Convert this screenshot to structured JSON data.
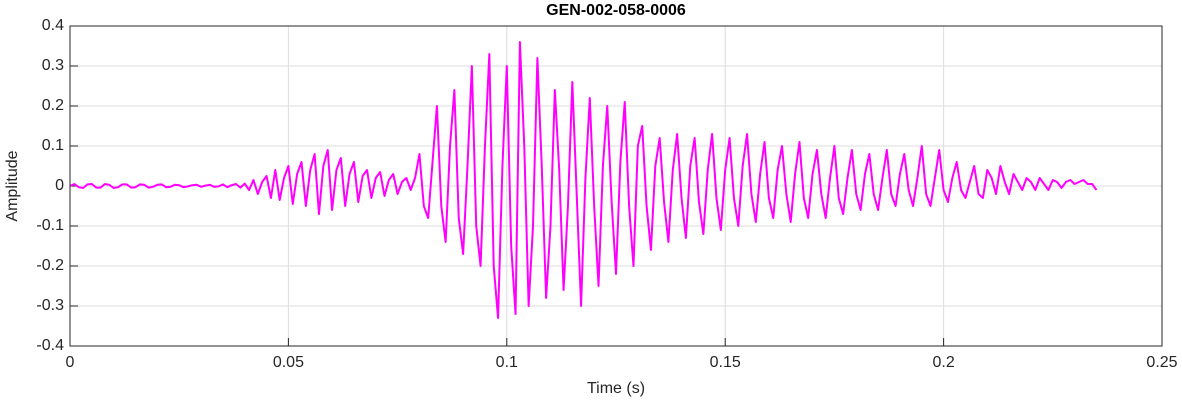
{
  "chart_data": {
    "type": "line",
    "title": "GEN-002-058-0006",
    "xlabel": "Time (s)",
    "ylabel": "Amplitude",
    "xlim": [
      0,
      0.25
    ],
    "xticks": [
      0,
      0.05,
      0.1,
      0.15,
      0.2,
      0.25
    ],
    "ylim": [
      -0.4,
      0.4
    ],
    "yticks": [
      -0.4,
      -0.3,
      -0.2,
      -0.1,
      0,
      0.1,
      0.2,
      0.3,
      0.4
    ],
    "grid": true,
    "x": [
      0,
      0.001,
      0.002,
      0.003,
      0.004,
      0.005,
      0.006,
      0.007,
      0.008,
      0.009,
      0.01,
      0.011,
      0.012,
      0.013,
      0.014,
      0.015,
      0.016,
      0.017,
      0.018,
      0.019,
      0.02,
      0.021,
      0.022,
      0.023,
      0.024,
      0.025,
      0.026,
      0.027,
      0.028,
      0.029,
      0.03,
      0.031,
      0.032,
      0.033,
      0.034,
      0.035,
      0.036,
      0.037,
      0.038,
      0.039,
      0.04,
      0.041,
      0.042,
      0.043,
      0.044,
      0.045,
      0.046,
      0.047,
      0.048,
      0.049,
      0.05,
      0.051,
      0.052,
      0.053,
      0.054,
      0.055,
      0.056,
      0.057,
      0.058,
      0.059,
      0.06,
      0.061,
      0.062,
      0.063,
      0.064,
      0.065,
      0.066,
      0.067,
      0.068,
      0.069,
      0.07,
      0.071,
      0.072,
      0.073,
      0.074,
      0.075,
      0.076,
      0.077,
      0.078,
      0.079,
      0.08,
      0.081,
      0.082,
      0.083,
      0.084,
      0.085,
      0.086,
      0.087,
      0.088,
      0.089,
      0.09,
      0.091,
      0.092,
      0.093,
      0.094,
      0.095,
      0.096,
      0.097,
      0.098,
      0.099,
      0.1,
      0.101,
      0.102,
      0.103,
      0.104,
      0.105,
      0.106,
      0.107,
      0.108,
      0.109,
      0.11,
      0.111,
      0.112,
      0.113,
      0.114,
      0.115,
      0.116,
      0.117,
      0.118,
      0.119,
      0.12,
      0.121,
      0.122,
      0.123,
      0.124,
      0.125,
      0.126,
      0.127,
      0.128,
      0.129,
      0.13,
      0.131,
      0.132,
      0.133,
      0.134,
      0.135,
      0.136,
      0.137,
      0.138,
      0.139,
      0.14,
      0.141,
      0.142,
      0.143,
      0.144,
      0.145,
      0.146,
      0.147,
      0.148,
      0.149,
      0.15,
      0.151,
      0.152,
      0.153,
      0.154,
      0.155,
      0.156,
      0.157,
      0.158,
      0.159,
      0.16,
      0.161,
      0.162,
      0.163,
      0.164,
      0.165,
      0.166,
      0.167,
      0.168,
      0.169,
      0.17,
      0.171,
      0.172,
      0.173,
      0.174,
      0.175,
      0.176,
      0.177,
      0.178,
      0.179,
      0.18,
      0.181,
      0.182,
      0.183,
      0.184,
      0.185,
      0.186,
      0.187,
      0.188,
      0.189,
      0.19,
      0.191,
      0.192,
      0.193,
      0.194,
      0.195,
      0.196,
      0.197,
      0.198,
      0.199,
      0.2,
      0.201,
      0.202,
      0.203,
      0.204,
      0.205,
      0.206,
      0.207,
      0.208,
      0.209,
      0.21,
      0.211,
      0.212,
      0.213,
      0.214,
      0.215,
      0.216,
      0.217,
      0.218,
      0.219,
      0.22,
      0.221,
      0.222,
      0.223,
      0.224,
      0.225,
      0.226,
      0.227,
      0.228,
      0.229,
      0.23,
      0.231,
      0.232,
      0.233,
      0.234,
      0.235
    ],
    "series": [
      {
        "color": "#ff00ff",
        "values": [
          0,
          0.005,
          -0.003,
          -0.005,
          0.004,
          0.005,
          -0.004,
          -0.004,
          0.005,
          0.003,
          -0.005,
          -0.003,
          0.004,
          0.004,
          -0.004,
          -0.003,
          0.004,
          0.003,
          -0.004,
          -0.002,
          0.003,
          0.004,
          -0.003,
          -0.002,
          0.003,
          0.002,
          -0.003,
          -0.001,
          0.002,
          0.003,
          -0.002,
          0.001,
          0.003,
          -0.002,
          -0.001,
          0.004,
          -0.003,
          0.002,
          0.005,
          -0.004,
          0.006,
          -0.01,
          0.015,
          -0.02,
          0.01,
          0.025,
          -0.03,
          0.04,
          -0.035,
          0.02,
          0.05,
          -0.045,
          0.03,
          0.06,
          -0.05,
          0.04,
          0.08,
          -0.07,
          0.05,
          0.09,
          -0.06,
          0.04,
          0.07,
          -0.05,
          0.03,
          0.06,
          -0.04,
          0.025,
          0.04,
          -0.03,
          0.02,
          0.035,
          -0.025,
          0.015,
          0.03,
          -0.02,
          0.01,
          0.02,
          -0.01,
          0.02,
          0.08,
          -0.05,
          -0.08,
          0.06,
          0.2,
          -0.05,
          -0.14,
          0.1,
          0.24,
          -0.08,
          -0.17,
          0.05,
          0.3,
          -0.1,
          -0.2,
          0.1,
          0.33,
          -0.2,
          -0.33,
          0.05,
          0.3,
          -0.15,
          -0.32,
          0.36,
          0.1,
          -0.3,
          -0.1,
          0.32,
          0.05,
          -0.28,
          -0.1,
          0.24,
          0.04,
          -0.26,
          -0.05,
          0.26,
          -0.02,
          -0.3,
          0.02,
          0.22,
          -0.05,
          -0.25,
          0.05,
          0.2,
          -0.04,
          -0.22,
          0.06,
          0.21,
          -0.05,
          -0.2,
          0.1,
          0.15,
          -0.05,
          -0.16,
          0.05,
          0.12,
          -0.04,
          -0.14,
          0.04,
          0.13,
          -0.03,
          -0.13,
          0.05,
          0.12,
          -0.04,
          -0.12,
          0.04,
          0.13,
          -0.03,
          -0.11,
          0.04,
          0.12,
          -0.03,
          -0.1,
          0.05,
          0.13,
          -0.02,
          -0.09,
          0.03,
          0.11,
          -0.03,
          -0.08,
          0.04,
          0.1,
          -0.02,
          -0.09,
          0.03,
          0.11,
          -0.03,
          -0.08,
          0.03,
          0.09,
          -0.02,
          -0.08,
          0.02,
          0.1,
          -0.03,
          -0.07,
          0.02,
          0.09,
          -0.02,
          -0.06,
          0.03,
          0.08,
          -0.02,
          -0.06,
          0.02,
          0.09,
          -0.02,
          -0.05,
          0.03,
          0.08,
          -0.01,
          -0.05,
          0.02,
          0.1,
          -0.02,
          -0.05,
          0.02,
          0.09,
          -0.01,
          -0.04,
          0.02,
          0.06,
          -0.01,
          -0.03,
          0.01,
          0.05,
          -0.02,
          -0.03,
          0.04,
          0.02,
          -0.02,
          0.05,
          0.01,
          -0.02,
          0.03,
          0.01,
          -0.01,
          0.02,
          0.01,
          -0.01,
          0.02,
          0.005,
          -0.01,
          0.015,
          0.01,
          -0.005,
          0.01,
          0.015,
          0.005,
          0.01,
          0.015,
          0.005,
          0.005,
          -0.01
        ]
      }
    ]
  }
}
